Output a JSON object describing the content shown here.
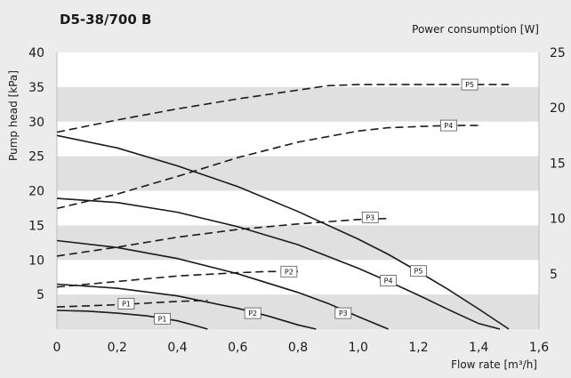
{
  "chart_data": {
    "type": "line",
    "title": "D5-38/700 B",
    "xlabel": "Flow rate [m³/h]",
    "ylabel": "Pump head  [kPa]",
    "y2label": "Power consumption [W]",
    "xlim": [
      0,
      1.6
    ],
    "ylim": [
      0,
      40
    ],
    "y2lim": [
      0,
      25
    ],
    "x_ticks": [
      "0",
      "0,2",
      "0,4",
      "0,6",
      "0,8",
      "1,0",
      "1,2",
      "1,4",
      "1,6"
    ],
    "y_ticks": [
      "5",
      "10",
      "15",
      "20",
      "25",
      "30",
      "35",
      "40"
    ],
    "y2_ticks": [
      "5",
      "10",
      "15",
      "20",
      "25"
    ],
    "grid": "horizontal bands",
    "head_curves": [
      {
        "name": "P1",
        "x": [
          0,
          0.1,
          0.2,
          0.3,
          0.4,
          0.46,
          0.5
        ],
        "y": [
          2.7,
          2.6,
          2.3,
          1.9,
          1.2,
          0.5,
          0
        ]
      },
      {
        "name": "P2",
        "x": [
          0,
          0.2,
          0.4,
          0.6,
          0.7,
          0.8,
          0.86
        ],
        "y": [
          6.5,
          5.9,
          4.8,
          3.0,
          1.9,
          0.6,
          0
        ]
      },
      {
        "name": "P3",
        "x": [
          0,
          0.2,
          0.4,
          0.6,
          0.8,
          0.9,
          1.0,
          1.1
        ],
        "y": [
          12.8,
          11.8,
          10.2,
          8.0,
          5.3,
          3.7,
          1.8,
          0
        ]
      },
      {
        "name": "P4",
        "x": [
          0,
          0.2,
          0.4,
          0.6,
          0.8,
          1.0,
          1.1,
          1.2,
          1.3,
          1.4,
          1.47
        ],
        "y": [
          18.9,
          18.3,
          16.9,
          14.8,
          12.2,
          8.8,
          6.9,
          4.9,
          2.8,
          0.8,
          0
        ]
      },
      {
        "name": "P5",
        "x": [
          0,
          0.2,
          0.4,
          0.6,
          0.8,
          1.0,
          1.1,
          1.2,
          1.3,
          1.4,
          1.5
        ],
        "y": [
          28.0,
          26.2,
          23.6,
          20.6,
          17.0,
          13.0,
          10.8,
          8.3,
          5.7,
          2.9,
          0
        ]
      }
    ],
    "power_curves": [
      {
        "name": "P1",
        "x": [
          0,
          0.1,
          0.2,
          0.3,
          0.4,
          0.5
        ],
        "y": [
          2.0,
          2.1,
          2.2,
          2.35,
          2.5,
          2.6
        ]
      },
      {
        "name": "P2",
        "x": [
          0,
          0.2,
          0.4,
          0.6,
          0.7,
          0.8
        ],
        "y": [
          3.8,
          4.3,
          4.8,
          5.1,
          5.2,
          5.2
        ]
      },
      {
        "name": "P3",
        "x": [
          0,
          0.2,
          0.4,
          0.6,
          0.8,
          1.0,
          1.1
        ],
        "y": [
          6.6,
          7.4,
          8.3,
          9.0,
          9.5,
          9.9,
          10.0
        ]
      },
      {
        "name": "P4",
        "x": [
          0,
          0.2,
          0.4,
          0.6,
          0.8,
          1.0,
          1.1,
          1.2,
          1.3,
          1.4
        ],
        "y": [
          10.9,
          12.2,
          13.8,
          15.5,
          16.9,
          17.9,
          18.2,
          18.3,
          18.4,
          18.4
        ]
      },
      {
        "name": "P5",
        "x": [
          0,
          0.2,
          0.4,
          0.6,
          0.8,
          0.9,
          1.0,
          1.2,
          1.4,
          1.5
        ],
        "y": [
          17.8,
          18.9,
          19.9,
          20.8,
          21.6,
          22.0,
          22.1,
          22.1,
          22.1,
          22.1
        ]
      }
    ],
    "head_curve_labels": [
      {
        "text": "P1",
        "x": 0.35,
        "y": 1.5
      },
      {
        "text": "P2",
        "x": 0.65,
        "y": 2.3
      },
      {
        "text": "P3",
        "x": 0.95,
        "y": 2.3
      },
      {
        "text": "P4",
        "x": 1.1,
        "y": 7.0
      },
      {
        "text": "P5",
        "x": 1.2,
        "y": 8.4
      }
    ],
    "power_curve_labels": [
      {
        "text": "P1",
        "x": 0.23,
        "y": 2.3
      },
      {
        "text": "P2",
        "x": 0.77,
        "y": 5.2
      },
      {
        "text": "P3",
        "x": 1.04,
        "y": 10.1
      },
      {
        "text": "P4",
        "x": 1.3,
        "y": 18.4
      },
      {
        "text": "P5",
        "x": 1.37,
        "y": 22.1
      }
    ],
    "colors": {
      "background": "#ececec",
      "plot_background": "#ffffff",
      "band": "#e0e0e0",
      "curve": "#1a1a1a"
    }
  }
}
